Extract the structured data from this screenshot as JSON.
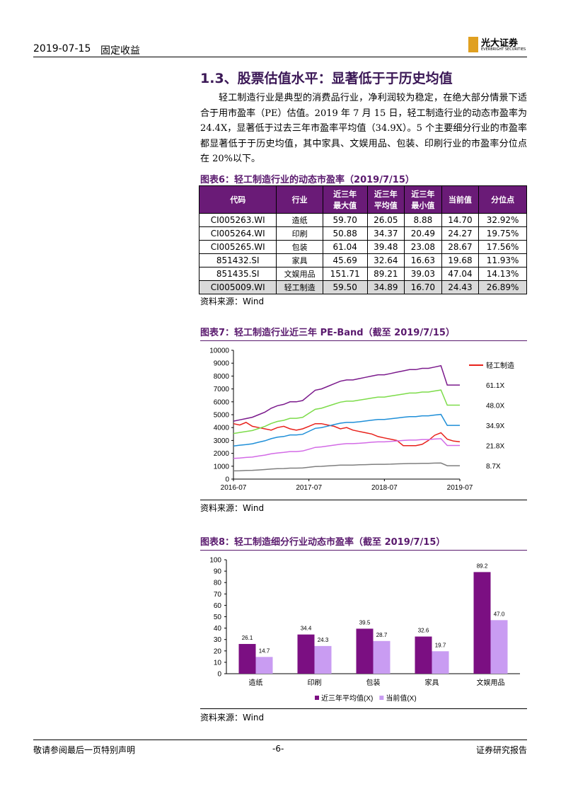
{
  "header": {
    "date": "2019-07-15",
    "category": "固定收益",
    "logo": "光大证券",
    "logo_sub": "EVERBRIGHT SECURITIES"
  },
  "section": {
    "title": "1.3、股票估值水平：显著低于于历史均值",
    "paragraph": "轻工制造行业是典型的消费品行业，净利润较为稳定，在绝大部分情景下适合于用市盈率（PE）估值。2019 年 7 月 15 日，轻工制造行业的动态市盈率为 24.4X，显著低于过去三年市盈率平均值（34.9X）。5 个主要细分行业的市盈率都显著低于于历史均值，其中家具、文娱用品、包装、印刷行业的市盈率分位点在 20%以下。"
  },
  "table": {
    "title": "图表6：轻工制造行业的动态市盈率（2019/7/15）",
    "columns": [
      "代码",
      "行业",
      "近三年\n最大值",
      "近三年\n平均值",
      "近三年\n最小值",
      "当前值",
      "分位点"
    ],
    "rows": [
      [
        "CI005263.WI",
        "造纸",
        "59.70",
        "26.05",
        "8.88",
        "14.70",
        "32.92%"
      ],
      [
        "CI005264.WI",
        "印刷",
        "50.88",
        "34.37",
        "20.49",
        "24.27",
        "19.75%"
      ],
      [
        "CI005265.WI",
        "包装",
        "61.04",
        "39.48",
        "23.08",
        "28.67",
        "17.56%"
      ],
      [
        "851432.SI",
        "家具",
        "45.69",
        "32.64",
        "16.63",
        "19.68",
        "11.93%"
      ],
      [
        "851435.SI",
        "文娱用品",
        "151.71",
        "89.21",
        "39.03",
        "47.04",
        "14.13%"
      ],
      [
        "CI005009.WI",
        "轻工制造",
        "59.50",
        "34.89",
        "16.70",
        "24.43",
        "26.89%"
      ]
    ],
    "source": "资料来源：Wind"
  },
  "chart_data": [
    {
      "type": "line",
      "title": "图表7：轻工制造行业近三年 PE-Band（截至 2019/7/15）",
      "source": "资料来源：Wind",
      "grid": false,
      "x": [
        "2016-07",
        "2016-08",
        "2016-09",
        "2016-10",
        "2016-11",
        "2016-12",
        "2017-01",
        "2017-02",
        "2017-03",
        "2017-04",
        "2017-05",
        "2017-06",
        "2017-07",
        "2017-08",
        "2017-09",
        "2017-10",
        "2017-11",
        "2017-12",
        "2018-01",
        "2018-02",
        "2018-03",
        "2018-04",
        "2018-05",
        "2018-06",
        "2018-07",
        "2018-08",
        "2018-09",
        "2018-10",
        "2018-11",
        "2018-12",
        "2019-01",
        "2019-02",
        "2019-03",
        "2019-04",
        "2019-05",
        "2019-06",
        "2019-07"
      ],
      "xticks": [
        "2016-07",
        "2017-07",
        "2018-07",
        "2019-07"
      ],
      "ylim": [
        0,
        10000
      ],
      "yticks": [
        0,
        1000,
        2000,
        3000,
        4000,
        5000,
        6000,
        7000,
        8000,
        9000,
        10000
      ],
      "series": [
        {
          "name": "轻工制造",
          "color": "#e8211b",
          "values": [
            4300,
            4200,
            4400,
            4100,
            4000,
            3900,
            3800,
            4000,
            4100,
            3900,
            3800,
            3900,
            4100,
            4300,
            4300,
            4200,
            4100,
            3900,
            4000,
            3800,
            3700,
            3600,
            3500,
            3300,
            3200,
            3100,
            3000,
            2600,
            2600,
            2600,
            2700,
            3000,
            3400,
            3600,
            3100,
            2950,
            2900
          ]
        },
        {
          "name": "61.1X",
          "color": "#7b1a8c",
          "values": [
            4500,
            4600,
            4700,
            4800,
            5000,
            5200,
            5500,
            5700,
            5800,
            6000,
            6000,
            6100,
            6500,
            6900,
            7000,
            7200,
            7400,
            7600,
            7700,
            7700,
            7800,
            7900,
            8000,
            8100,
            8100,
            8200,
            8300,
            8400,
            8500,
            8500,
            8600,
            8600,
            8700,
            8800,
            7300,
            7300,
            7300
          ]
        },
        {
          "name": "48.0X",
          "color": "#7ddc4a",
          "values": [
            3540,
            3620,
            3690,
            3770,
            3930,
            4090,
            4320,
            4480,
            4560,
            4720,
            4720,
            4790,
            5110,
            5420,
            5500,
            5660,
            5820,
            5970,
            6050,
            6050,
            6130,
            6210,
            6290,
            6370,
            6370,
            6450,
            6520,
            6600,
            6680,
            6680,
            6760,
            6760,
            6840,
            6920,
            5740,
            5740,
            5740
          ]
        },
        {
          "name": "34.9X",
          "color": "#1f8fd8",
          "values": [
            2570,
            2630,
            2680,
            2740,
            2860,
            2970,
            3140,
            3250,
            3310,
            3430,
            3430,
            3480,
            3710,
            3940,
            4000,
            4110,
            4230,
            4340,
            4400,
            4400,
            4450,
            4510,
            4570,
            4630,
            4630,
            4680,
            4740,
            4800,
            4850,
            4850,
            4910,
            4910,
            4970,
            5020,
            4170,
            4170,
            4170
          ]
        },
        {
          "name": "21.8X",
          "color": "#d36be6",
          "values": [
            1610,
            1640,
            1680,
            1710,
            1790,
            1860,
            1960,
            2030,
            2070,
            2140,
            2140,
            2180,
            2320,
            2460,
            2500,
            2570,
            2640,
            2710,
            2750,
            2750,
            2780,
            2820,
            2860,
            2890,
            2890,
            2930,
            2960,
            3000,
            3030,
            3030,
            3070,
            3070,
            3110,
            3140,
            2610,
            2610,
            2610
          ]
        },
        {
          "name": "8.7X",
          "color": "#7f7f7f",
          "values": [
            640,
            650,
            670,
            680,
            710,
            740,
            780,
            810,
            820,
            850,
            850,
            870,
            920,
            980,
            990,
            1020,
            1050,
            1080,
            1090,
            1090,
            1110,
            1120,
            1140,
            1150,
            1150,
            1160,
            1180,
            1190,
            1210,
            1210,
            1220,
            1220,
            1240,
            1250,
            1040,
            1040,
            1040
          ]
        }
      ]
    },
    {
      "type": "bar",
      "title": "图表8：轻工制造细分行业动态市盈率（截至 2019/7/15）",
      "source": "资料来源：Wind",
      "grid": false,
      "categories": [
        "造纸",
        "印刷",
        "包装",
        "家具",
        "文娱用品"
      ],
      "ylim": [
        0,
        100
      ],
      "yticks": [
        0,
        10,
        20,
        30,
        40,
        50,
        60,
        70,
        80,
        90,
        100
      ],
      "series": [
        {
          "name": "近三年平均值(X)",
          "color": "#7b0f82",
          "values": [
            26.1,
            34.4,
            39.5,
            32.6,
            89.2
          ],
          "value_labels": [
            "26.1",
            "34.4",
            "39.5",
            "32.6",
            "89.2"
          ]
        },
        {
          "name": "当前值(X)",
          "color": "#c99cf2",
          "values": [
            14.7,
            24.3,
            28.7,
            19.7,
            47.0
          ],
          "value_labels": [
            "14.7",
            "24.3",
            "28.7",
            "19.7",
            "47.0"
          ]
        }
      ]
    }
  ],
  "footer": {
    "left": "敬请参阅最后一页特别声明",
    "center": "-6-",
    "right": "证券研究报告"
  }
}
